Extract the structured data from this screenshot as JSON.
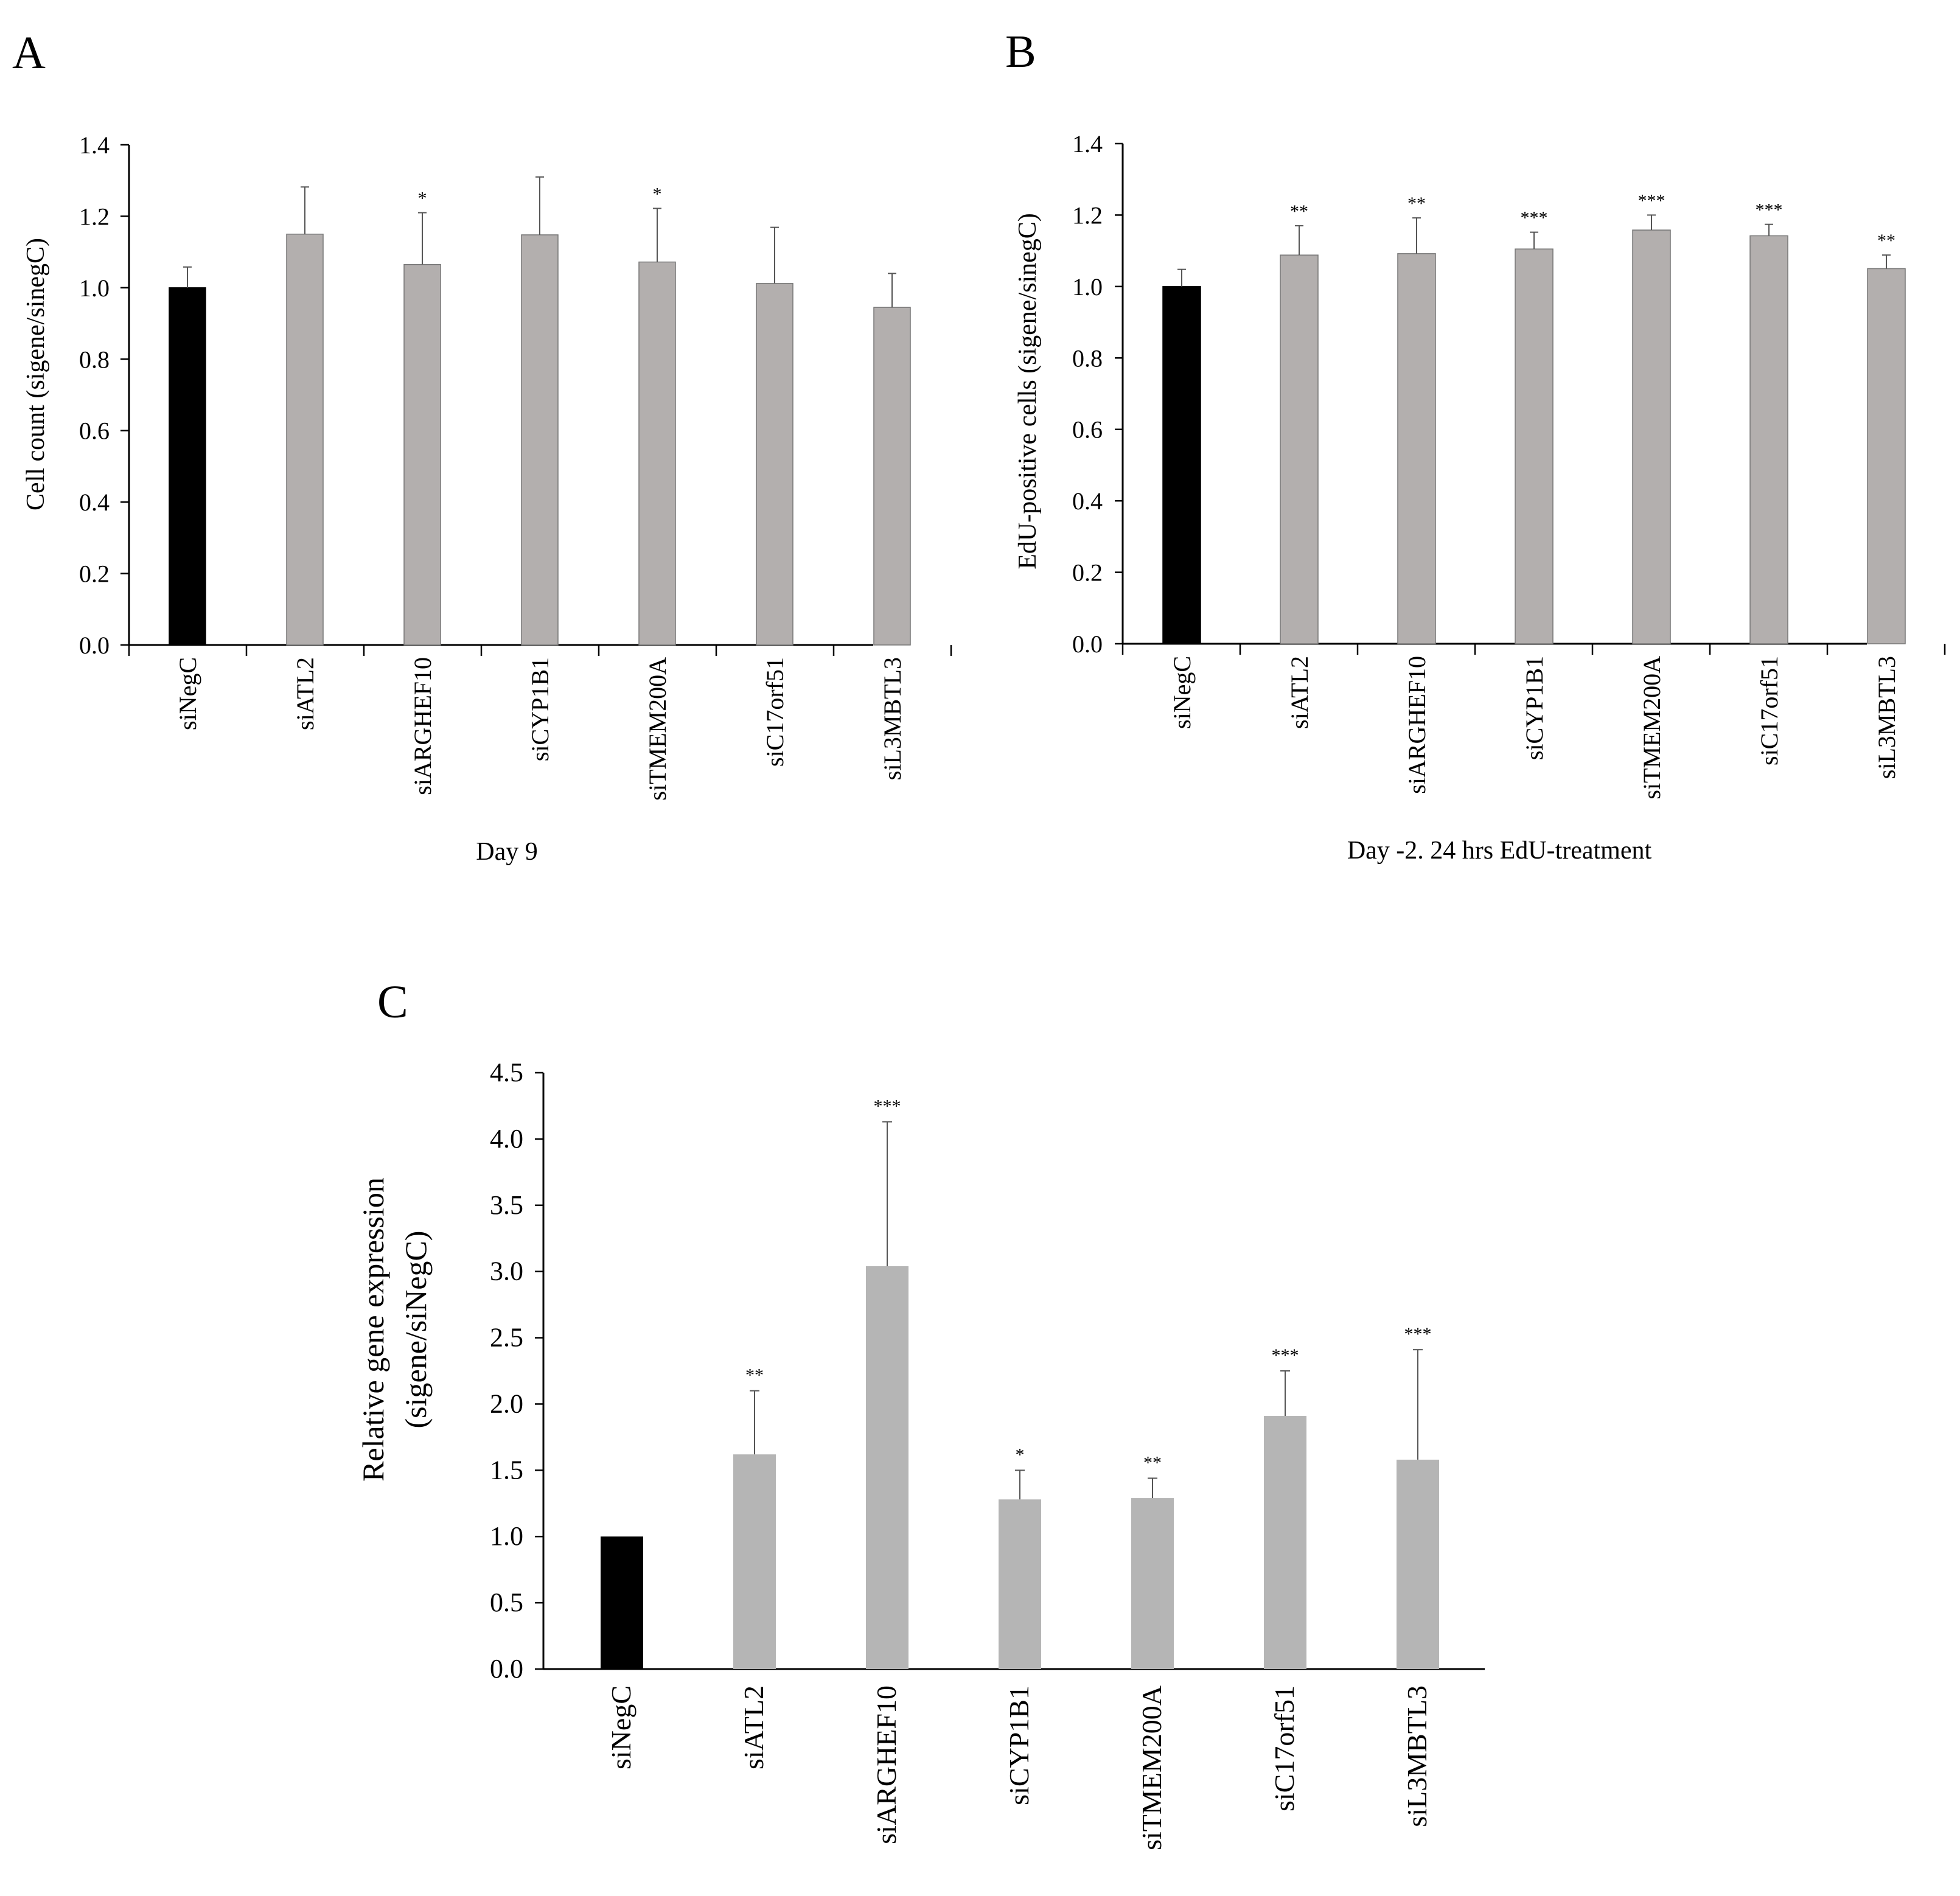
{
  "chart_data": [
    {
      "panel": "A",
      "type": "bar",
      "title": "",
      "xlabel": "Day 9",
      "ylabel": "Cell count (sigene/sinegC)",
      "ylim": [
        0,
        1.4
      ],
      "yticks": [
        "0.0",
        "0.2",
        "0.4",
        "0.6",
        "0.8",
        "1.0",
        "1.2",
        "1.4"
      ],
      "grid": false,
      "categories": [
        "siNegC",
        "siATL2",
        "siARGHEF10",
        "siCYP1B1",
        "siTMEM200A",
        "siC17orf51",
        "siL3MBTL3"
      ],
      "values": [
        1.0,
        1.15,
        1.065,
        1.148,
        1.072,
        1.012,
        0.945
      ],
      "errors": [
        0.058,
        0.132,
        0.145,
        0.162,
        0.15,
        0.157,
        0.095
      ],
      "significance": [
        "",
        "",
        "*",
        "",
        "*",
        "",
        ""
      ],
      "colors": [
        "#000000",
        "#b3afae",
        "#b3afae",
        "#b3afae",
        "#b3afae",
        "#b3afae",
        "#b3afae"
      ]
    },
    {
      "panel": "B",
      "type": "bar",
      "title": "",
      "xlabel": "Day -2. 24 hrs EdU-treatment",
      "ylabel": "EdU-positive cells (sigene/sinegC)",
      "ylim": [
        0,
        1.4
      ],
      "yticks": [
        "0.0",
        "0.2",
        "0.4",
        "0.6",
        "0.8",
        "1.0",
        "1.2",
        "1.4"
      ],
      "grid": false,
      "categories": [
        "siNegC",
        "siATL2",
        "siARGHEF10",
        "siCYP1B1",
        "siTMEM200A",
        "siC17orf51",
        "siL3MBTL3"
      ],
      "values": [
        1.0,
        1.088,
        1.092,
        1.105,
        1.158,
        1.142,
        1.05
      ],
      "errors": [
        0.048,
        0.082,
        0.1,
        0.047,
        0.042,
        0.032,
        0.038
      ],
      "significance": [
        "",
        "**",
        "**",
        "***",
        "***",
        "***",
        "**"
      ],
      "colors": [
        "#000000",
        "#b3afae",
        "#b3afae",
        "#b3afae",
        "#b3afae",
        "#b3afae",
        "#b3afae"
      ]
    },
    {
      "panel": "C",
      "type": "bar",
      "title": "",
      "xlabel": "",
      "ylabel": [
        "Relative gene expression",
        "(sigene/siNegC)"
      ],
      "ylim": [
        0,
        4.5
      ],
      "yticks": [
        "0.0",
        "0.5",
        "1.0",
        "1.5",
        "2.0",
        "2.5",
        "3.0",
        "3.5",
        "4.0",
        "4.5"
      ],
      "grid": false,
      "categories": [
        "siNegC",
        "siATL2",
        "siARGHEF10",
        "siCYP1B1",
        "siTMEM200A",
        "siC17orf51",
        "siL3MBTL3"
      ],
      "values": [
        1.0,
        1.62,
        3.04,
        1.28,
        1.29,
        1.91,
        1.58
      ],
      "errors": [
        0.0,
        0.48,
        1.09,
        0.22,
        0.15,
        0.34,
        0.83
      ],
      "significance": [
        "",
        "**",
        "***",
        "*",
        "**",
        "***",
        "***"
      ],
      "colors": [
        "#000000",
        "#b5b5b5",
        "#b5b5b5",
        "#b5b5b5",
        "#b5b5b5",
        "#b5b5b5",
        "#b5b5b5"
      ]
    }
  ]
}
